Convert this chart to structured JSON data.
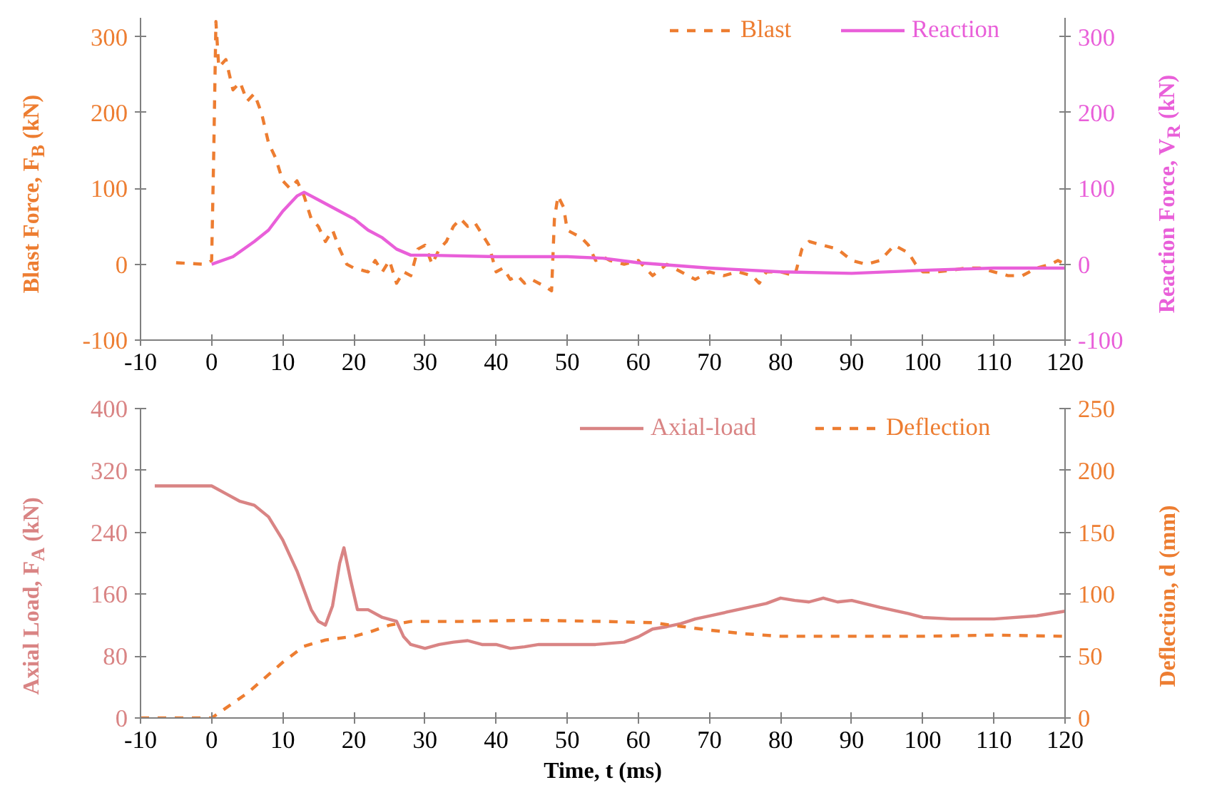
{
  "chart_data": [
    {
      "type": "line",
      "ylabel": "Blast Force, F$_{B}$ (kN)",
      "y2label": "Reaction Force, V$_{R}$ (kN)",
      "xlim": [
        -10,
        120
      ],
      "xticks": [
        -10,
        0,
        10,
        20,
        30,
        40,
        50,
        60,
        70,
        80,
        90,
        100,
        110,
        120
      ],
      "ylim": [
        -100,
        325
      ],
      "yticks": [
        -100,
        0,
        100,
        200,
        300
      ],
      "y2lim": [
        -100,
        325
      ],
      "y2ticks": [
        -100,
        0,
        100,
        200,
        300
      ],
      "grid": false,
      "legend": "top right",
      "marker": "none",
      "series": [
        {
          "name": "Blast",
          "color": "#ed7d31",
          "line_style": "dashed",
          "x": [
            -5,
            -1,
            0,
            0.3,
            0.6,
            1,
            2,
            3,
            4,
            5,
            6,
            7,
            8,
            9,
            10,
            11,
            12,
            13,
            14,
            15,
            16,
            17,
            18,
            19,
            20,
            22,
            23,
            24,
            25,
            26,
            27,
            28,
            29,
            30,
            31,
            32,
            33,
            34,
            35,
            36,
            37,
            38,
            39,
            40,
            41,
            42,
            43,
            44,
            45,
            46,
            47,
            47.8,
            48.2,
            48.7,
            49.5,
            50,
            51,
            52,
            53,
            54,
            55,
            56,
            58,
            60,
            62,
            64,
            66,
            68,
            70,
            72,
            74,
            76,
            77,
            78,
            80,
            82,
            83,
            84,
            86,
            88,
            90,
            92,
            94,
            96,
            97,
            98,
            99,
            100,
            102,
            104,
            106,
            108,
            110,
            112,
            114,
            116,
            118,
            119,
            120
          ],
          "values": [
            2,
            0,
            5,
            150,
            320,
            260,
            270,
            230,
            240,
            215,
            225,
            200,
            160,
            140,
            110,
            100,
            110,
            90,
            60,
            50,
            30,
            45,
            20,
            0,
            -5,
            -10,
            5,
            -10,
            5,
            -25,
            -10,
            -15,
            20,
            25,
            0,
            20,
            30,
            50,
            60,
            50,
            55,
            40,
            25,
            -10,
            -5,
            -20,
            -15,
            -25,
            -20,
            -25,
            -30,
            -35,
            60,
            90,
            75,
            45,
            40,
            35,
            25,
            5,
            10,
            5,
            0,
            5,
            -15,
            0,
            -10,
            -20,
            -10,
            -15,
            -10,
            -15,
            -25,
            -10,
            -10,
            -15,
            20,
            30,
            25,
            20,
            5,
            0,
            5,
            25,
            20,
            15,
            0,
            -10,
            -10,
            -8,
            -5,
            -5,
            -10,
            -15,
            -15,
            -5,
            0,
            5,
            0
          ]
        },
        {
          "name": "Reaction",
          "color": "#e95fd9",
          "line_style": "solid",
          "axis": "y2",
          "x": [
            0,
            3,
            6,
            8,
            10,
            12,
            13,
            15,
            18,
            20,
            22,
            24,
            26,
            28,
            30,
            40,
            50,
            55,
            60,
            70,
            80,
            90,
            100,
            110,
            120
          ],
          "values": [
            0,
            10,
            30,
            45,
            70,
            90,
            95,
            85,
            70,
            60,
            45,
            35,
            20,
            12,
            12,
            10,
            10,
            8,
            2,
            -5,
            -10,
            -12,
            -8,
            -5,
            -5
          ]
        }
      ]
    },
    {
      "type": "line",
      "xlabel": "Time, t (ms)",
      "ylabel": "Axial Load, F$_{A}$ (kN)",
      "y2label": "Deflection, d (mm)",
      "xlim": [
        -10,
        120
      ],
      "xticks": [
        -10,
        0,
        10,
        20,
        30,
        40,
        50,
        60,
        70,
        80,
        90,
        100,
        110,
        120
      ],
      "ylim": [
        0,
        400
      ],
      "yticks": [
        0,
        80,
        160,
        240,
        320,
        400
      ],
      "y2lim": [
        0,
        250
      ],
      "y2ticks": [
        0,
        50,
        100,
        150,
        200,
        250
      ],
      "grid": false,
      "legend": "top right",
      "marker": "none",
      "series": [
        {
          "name": "Axial-load",
          "color": "#d98484",
          "line_style": "solid",
          "x": [
            -8,
            0,
            2,
            4,
            6,
            8,
            10,
            12,
            14,
            15,
            16,
            17,
            18,
            18.6,
            19.5,
            20.5,
            22,
            24,
            26,
            27,
            28,
            30,
            32,
            34,
            36,
            38,
            40,
            42,
            44,
            46,
            50,
            54,
            58,
            60,
            62,
            64,
            66,
            68,
            70,
            75,
            78,
            80,
            82,
            84,
            86,
            88,
            90,
            94,
            98,
            100,
            104,
            110,
            116,
            120
          ],
          "values": [
            300,
            300,
            290,
            280,
            275,
            260,
            230,
            190,
            140,
            125,
            120,
            145,
            200,
            220,
            180,
            140,
            140,
            130,
            125,
            105,
            95,
            90,
            95,
            98,
            100,
            95,
            95,
            90,
            92,
            95,
            95,
            95,
            98,
            105,
            115,
            118,
            122,
            128,
            132,
            142,
            148,
            155,
            152,
            150,
            155,
            150,
            152,
            143,
            135,
            130,
            128,
            128,
            132,
            138
          ]
        },
        {
          "name": "Deflection",
          "color": "#ed7d31",
          "line_style": "dashed",
          "axis": "y2",
          "x": [
            -10,
            0,
            5,
            10,
            13,
            16,
            20,
            22,
            25,
            28,
            35,
            45,
            55,
            62,
            66,
            70,
            75,
            80,
            90,
            100,
            110,
            120
          ],
          "values": [
            0,
            0,
            20,
            45,
            58,
            63,
            66,
            69,
            75,
            78,
            78,
            79,
            78,
            77,
            74,
            71,
            68,
            66,
            66,
            66,
            67,
            66
          ]
        }
      ]
    }
  ]
}
